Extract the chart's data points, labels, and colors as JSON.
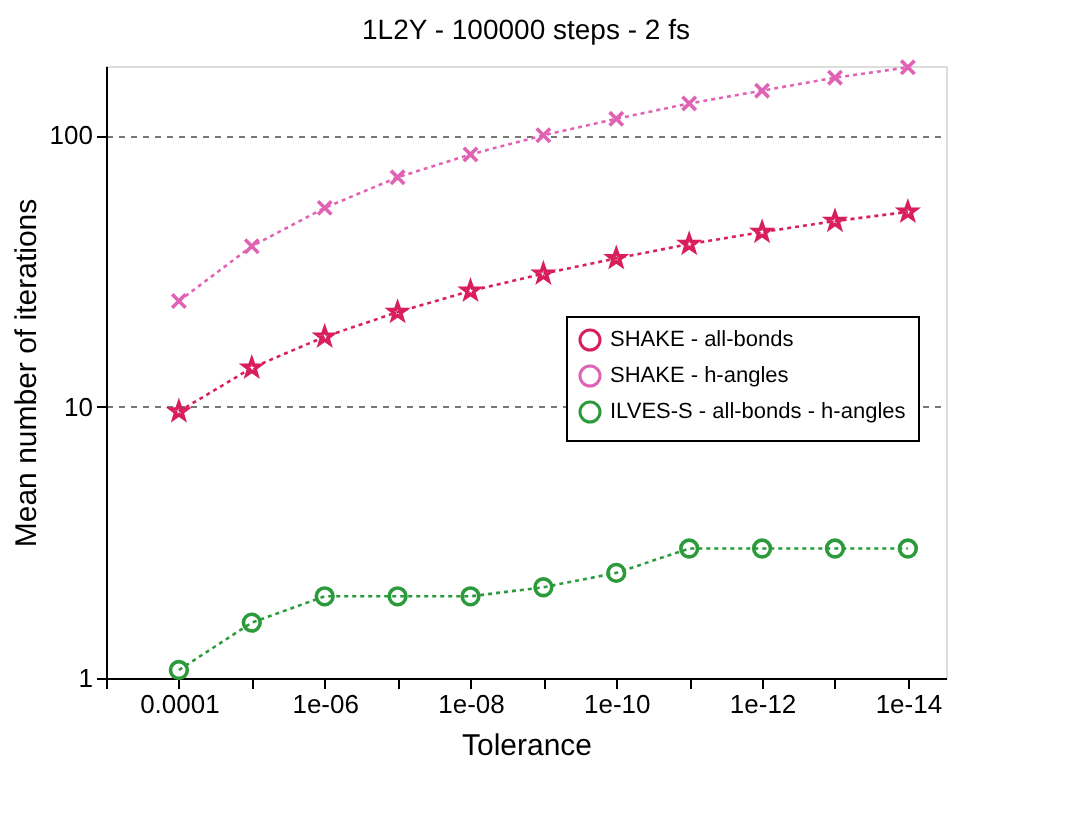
{
  "chart_data": {
    "type": "line",
    "title": "1L2Y - 100000 steps - 2 fs",
    "xlabel": "Tolerance",
    "ylabel": "Mean number of iterations",
    "x": [
      0.0001,
      1e-05,
      1e-06,
      1e-07,
      1e-08,
      1e-09,
      1e-10,
      1e-11,
      1e-12,
      1e-13,
      1e-14
    ],
    "series": [
      {
        "name": "SHAKE - all-bonds",
        "color": "#d81e5b",
        "marker": "star",
        "values": [
          9.6,
          13.9,
          18.1,
          22.3,
          26.7,
          30.9,
          35.2,
          39.7,
          44,
          48.3,
          52.2
        ]
      },
      {
        "name": "SHAKE - h-angles",
        "color": "#e062b4",
        "marker": "cross",
        "values": [
          24.5,
          39,
          54,
          70,
          85,
          100,
          115,
          131,
          146,
          163,
          178
        ]
      },
      {
        "name": "ILVES-S - all-bonds - h-angles",
        "color": "#2a9a3a",
        "marker": "circle",
        "values": [
          1.07,
          1.6,
          2,
          2,
          2,
          2.16,
          2.44,
          3,
          3,
          3,
          3
        ]
      }
    ],
    "log": "xy",
    "xlim": [
      0.001,
      3e-15
    ],
    "ylim": [
      1,
      180
    ],
    "xticks": [
      {
        "value": 0.001,
        "label": null
      },
      0.0001,
      {
        "value": 1e-05,
        "label": null
      },
      {
        "value": 1e-06,
        "label": "1e-06"
      },
      {
        "value": 1e-07,
        "label": null
      },
      {
        "value": 1e-08,
        "label": "1e-08"
      },
      {
        "value": 1e-09,
        "label": null
      },
      {
        "value": 1e-10,
        "label": "1e-10"
      },
      {
        "value": 1e-11,
        "label": null
      },
      {
        "value": 1e-12,
        "label": "1e-12"
      },
      {
        "value": 1e-13,
        "label": null
      },
      {
        "value": 1e-14,
        "label": "1e-14"
      }
    ],
    "yticks": [
      1,
      10,
      100
    ],
    "grid": "y",
    "legend": "right",
    "line_style": "dotted"
  }
}
